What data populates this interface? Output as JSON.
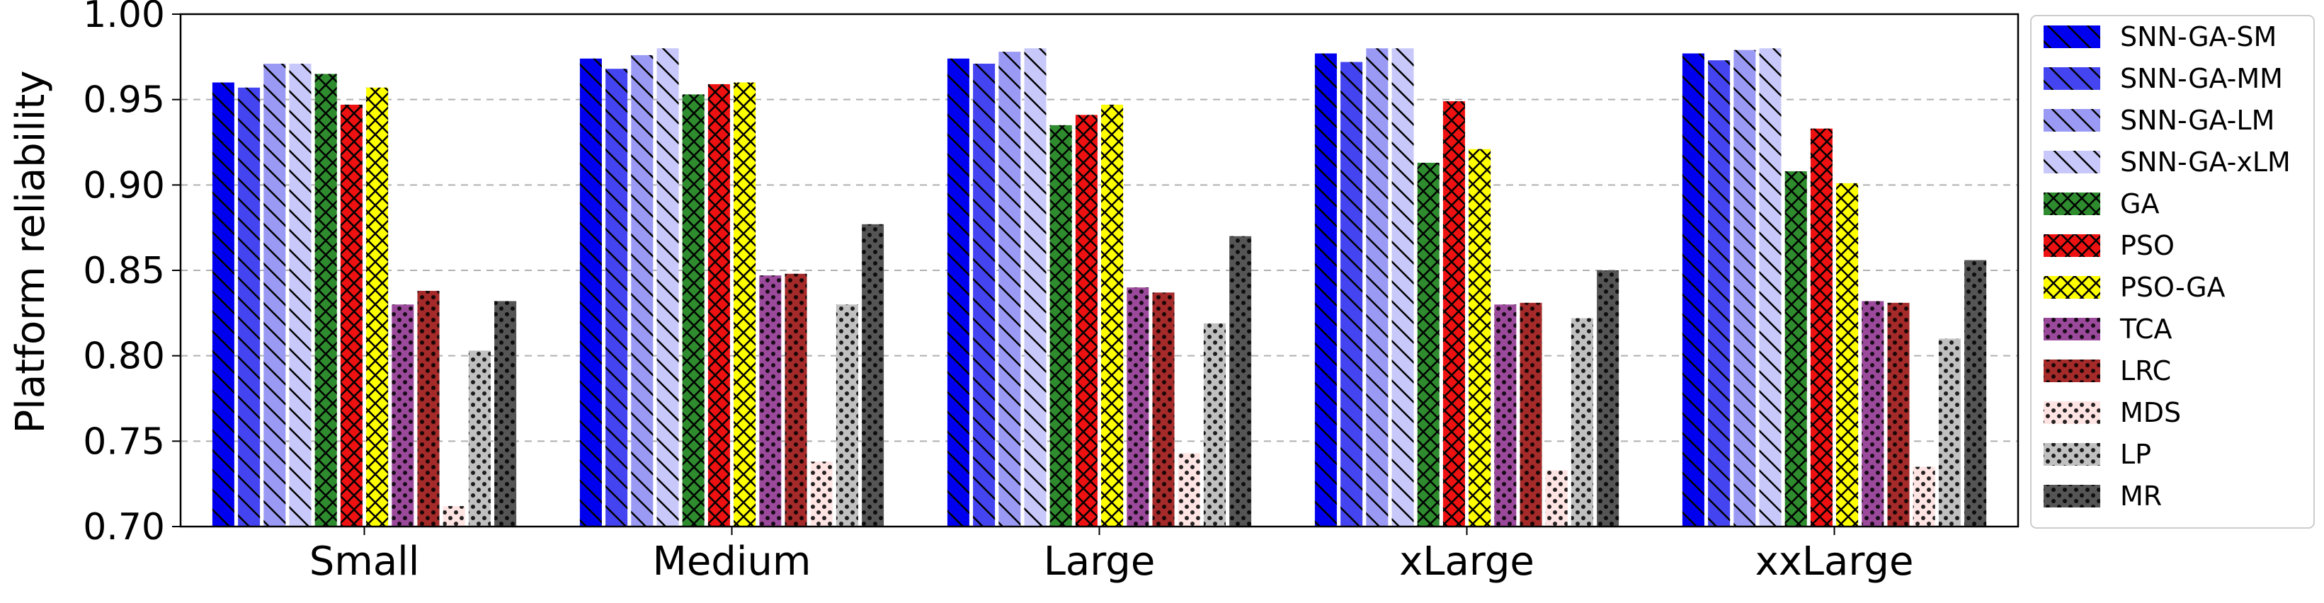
{
  "chart_data": {
    "type": "bar",
    "title": "",
    "xlabel": "",
    "ylabel": "Platform reliability",
    "ylim": [
      0.7,
      1.0
    ],
    "yticks": [
      "0.70",
      "0.75",
      "0.80",
      "0.85",
      "0.90",
      "0.95",
      "1.00"
    ],
    "grid": "horizontal dashed",
    "legend_position": "right, outside plot",
    "categories": [
      "Small",
      "Medium",
      "Large",
      "xLarge",
      "xxLarge"
    ],
    "series": [
      {
        "name": "SNN-GA-SM",
        "color": "#0000ee",
        "pattern": "backslash",
        "values": [
          0.96,
          0.974,
          0.974,
          0.977,
          0.977
        ]
      },
      {
        "name": "SNN-GA-MM",
        "color": "#4444f0",
        "pattern": "backslash",
        "values": [
          0.957,
          0.968,
          0.971,
          0.972,
          0.973
        ]
      },
      {
        "name": "SNN-GA-LM",
        "color": "#9a9af5",
        "pattern": "backslash",
        "values": [
          0.971,
          0.976,
          0.978,
          0.98,
          0.979
        ]
      },
      {
        "name": "SNN-GA-xLM",
        "color": "#c8c8fa",
        "pattern": "backslash",
        "values": [
          0.971,
          0.98,
          0.98,
          0.98,
          0.98
        ]
      },
      {
        "name": "GA",
        "color": "#2e8b2e",
        "pattern": "crosshatch",
        "values": [
          0.965,
          0.953,
          0.935,
          0.913,
          0.908
        ]
      },
      {
        "name": "PSO",
        "color": "#ee1111",
        "pattern": "crosshatch",
        "values": [
          0.947,
          0.959,
          0.941,
          0.949,
          0.933
        ]
      },
      {
        "name": "PSO-GA",
        "color": "#ffff00",
        "pattern": "crosshatch",
        "values": [
          0.957,
          0.96,
          0.947,
          0.921,
          0.901
        ]
      },
      {
        "name": "TCA",
        "color": "#9b4a9b",
        "pattern": "dots",
        "values": [
          0.83,
          0.847,
          0.84,
          0.83,
          0.832
        ]
      },
      {
        "name": "LRC",
        "color": "#a52a2a",
        "pattern": "dots",
        "values": [
          0.838,
          0.848,
          0.837,
          0.831,
          0.831
        ]
      },
      {
        "name": "MDS",
        "color": "#ffe4e4",
        "pattern": "dots",
        "values": [
          0.712,
          0.738,
          0.743,
          0.733,
          0.735
        ]
      },
      {
        "name": "LP",
        "color": "#c0c0c0",
        "pattern": "dots",
        "values": [
          0.803,
          0.83,
          0.819,
          0.822,
          0.81
        ]
      },
      {
        "name": "MR",
        "color": "#555555",
        "pattern": "dots",
        "values": [
          0.832,
          0.877,
          0.87,
          0.85,
          0.856
        ]
      }
    ]
  }
}
